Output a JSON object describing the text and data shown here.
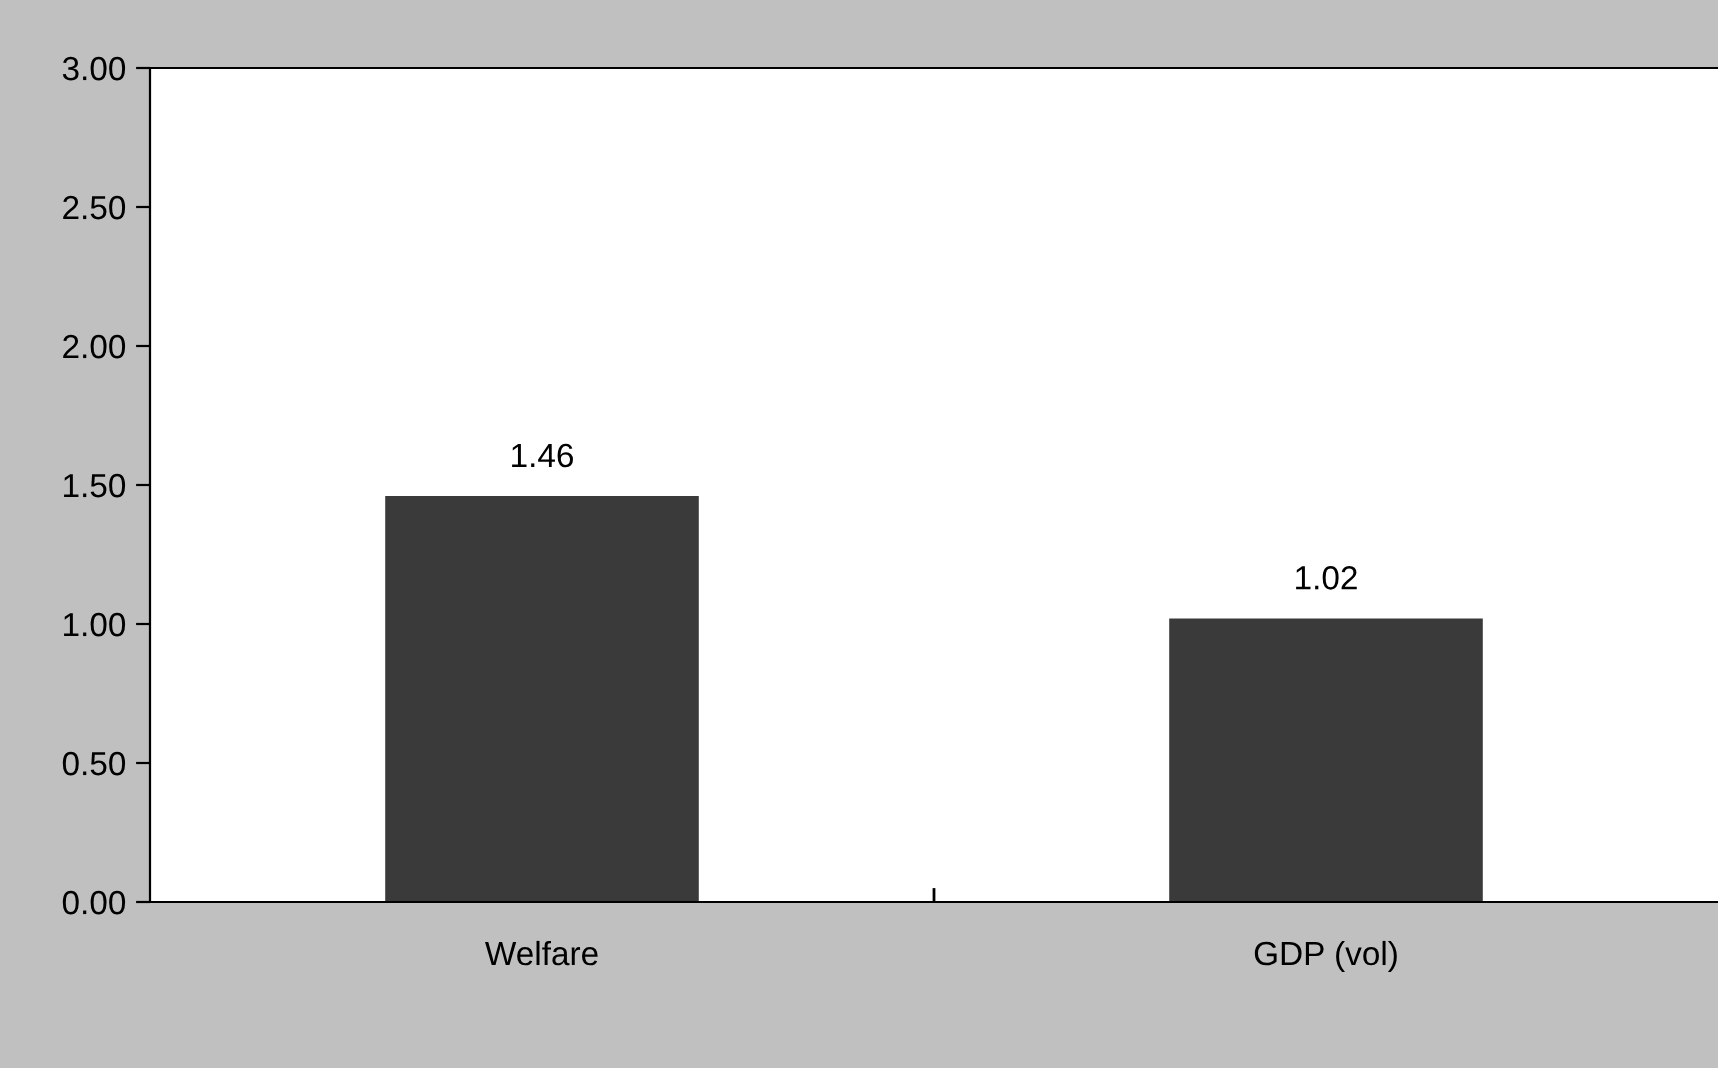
{
  "chart_data": {
    "type": "bar",
    "categories": [
      "Welfare",
      "GDP (vol)"
    ],
    "values": [
      1.46,
      1.02
    ],
    "color": "#3a3a3a",
    "data_labels": true,
    "ylim": [
      0,
      3
    ],
    "yticks": [
      {
        "value": 0,
        "label": "0.00"
      },
      {
        "value": 0.5,
        "label": "0.50"
      },
      {
        "value": 1,
        "label": "1.00"
      },
      {
        "value": 1.5,
        "label": "1.50"
      },
      {
        "value": 2,
        "label": "2.00"
      },
      {
        "value": 2.5,
        "label": "2.50"
      },
      {
        "value": 3,
        "label": "3.00"
      }
    ],
    "grid": false,
    "legend": false
  }
}
